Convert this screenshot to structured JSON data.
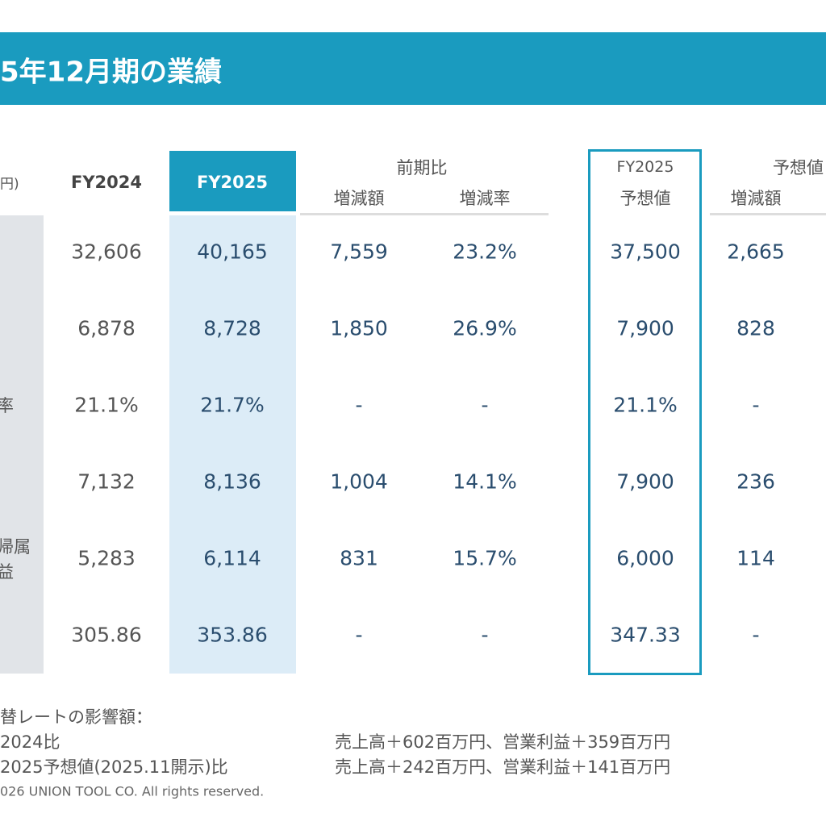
{
  "title": "5年12月期の業績",
  "header": {
    "unit": "円)",
    "fy2024": "FY2024",
    "fy2025": "FY2025",
    "yoy": "前期比",
    "yoy_change": "増減額",
    "yoy_rate": "増減率",
    "forecast_fy": "FY2025",
    "forecast": "予想値",
    "vs_forecast": "予想値",
    "vs_change": "増減額"
  },
  "rows": [
    {
      "cells": [
        "32,606",
        "40,165",
        "7,559",
        "23.2%",
        "37,500",
        "2,665"
      ]
    },
    {
      "cells": [
        "6,878",
        "8,728",
        "1,850",
        "26.9%",
        "7,900",
        "828"
      ]
    },
    {
      "label": [
        "率"
      ],
      "cells": [
        "21.1%",
        "21.7%",
        "-",
        "-",
        "21.1%",
        "-"
      ]
    },
    {
      "cells": [
        "7,132",
        "8,136",
        "1,004",
        "14.1%",
        "7,900",
        "236"
      ]
    },
    {
      "label": [
        "帰属",
        "益"
      ],
      "cells": [
        "5,283",
        "6,114",
        "831",
        "15.7%",
        "6,000",
        "114"
      ]
    },
    {
      "cells": [
        "305.86",
        "353.86",
        "-",
        "-",
        "347.33",
        "-"
      ]
    }
  ],
  "footer": {
    "heading": "替レートの影響額：",
    "line1_label": "2024比",
    "line1_text": "売上高＋602百万円、営業利益＋359百万円",
    "line2_label": "2025予想値(2025.11開示)比",
    "line2_text": "売上高＋242百万円、営業利益＋141百万円"
  },
  "copyright": "026 UNION TOOL CO. All rights reserved."
}
